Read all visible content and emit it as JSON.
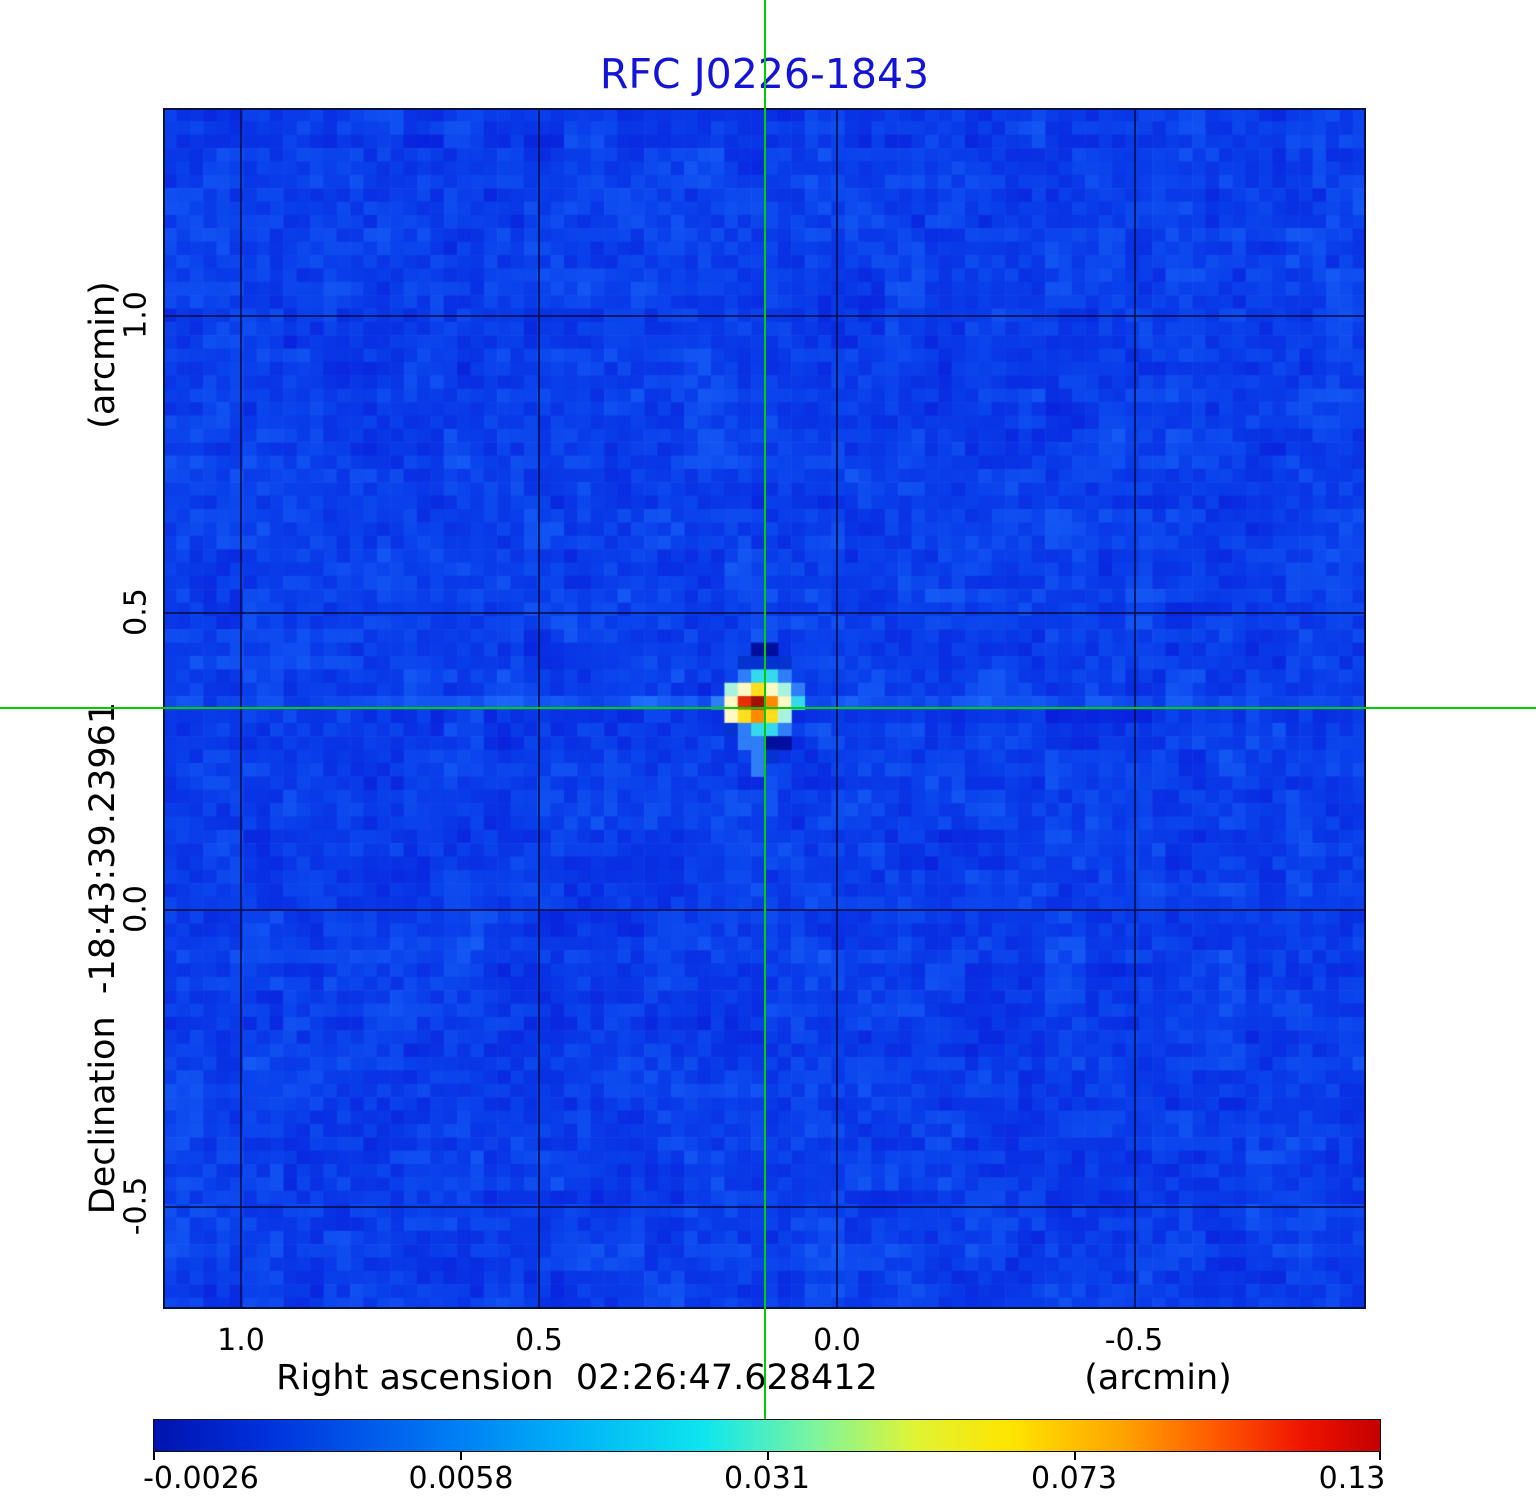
{
  "colors": {
    "title": "#1414d6",
    "crosshair": "#00cc00",
    "grid": "#081253",
    "map_base": "#093eea"
  },
  "text": {
    "title": "RFC J0226-1843",
    "y_unit": "(arcmin)",
    "y_label": "Declination  -18:43:39.23961",
    "x_label": "Right ascension  02:26:47.628412",
    "x_unit": "(arcmin)",
    "x_ticks": [
      "1.0",
      "0.5",
      "0.0",
      "-0.5"
    ],
    "y_ticks": [
      "1.0",
      "0.5",
      "0.0",
      "-0.5"
    ],
    "cbar_ticks": [
      "-0.0026",
      "0.0058",
      "0.031",
      "0.073",
      "0.13"
    ]
  },
  "chart_data": {
    "type": "heatmap",
    "title": "RFC J0226-1843",
    "x_axis": {
      "label": "Right ascension",
      "reference_value": "02:26:47.628412",
      "unit": "arcmin",
      "tick_values": [
        1.0,
        0.5,
        0.0,
        -0.5
      ],
      "range": [
        1.13,
        -0.9
      ]
    },
    "y_axis": {
      "label": "Declination",
      "reference_value": "-18:43:39.23961",
      "unit": "arcmin",
      "tick_values": [
        1.0,
        0.5,
        0.0,
        -0.5
      ],
      "range": [
        -0.67,
        1.36
      ]
    },
    "colorbar": {
      "tick_labels": [
        "-0.0026",
        "0.0058",
        "0.031",
        "0.073",
        "0.13"
      ],
      "min": -0.0026,
      "max": 0.13,
      "colormap": "jet-like",
      "gradient": [
        {
          "pos": 0.0,
          "color": "#0013ae"
        },
        {
          "pos": 0.09,
          "color": "#0030dc"
        },
        {
          "pos": 0.22,
          "color": "#0070f2"
        },
        {
          "pos": 0.34,
          "color": "#00b2f8"
        },
        {
          "pos": 0.45,
          "color": "#0fe6ee"
        },
        {
          "pos": 0.54,
          "color": "#7ef59d"
        },
        {
          "pos": 0.62,
          "color": "#dff434"
        },
        {
          "pos": 0.7,
          "color": "#ffe400"
        },
        {
          "pos": 0.79,
          "color": "#ffa300"
        },
        {
          "pos": 0.87,
          "color": "#ff5500"
        },
        {
          "pos": 0.94,
          "color": "#ee1200"
        },
        {
          "pos": 1.0,
          "color": "#c40000"
        }
      ]
    },
    "crosshair": {
      "x_arcmin": 0.12,
      "y_arcmin": 0.35
    },
    "source": {
      "peak_value": 0.13,
      "located_at_crosshair": true
    },
    "map": {
      "grid_cells": 90,
      "noise_seed": 20260226,
      "base_color": "#093eea",
      "palette": {
        "K": "#000f9e",
        "D": "#0433cf",
        "L": "#2f7ef8",
        "C": "#35d9ee",
        "P": "#a8f3df",
        "W": "#fcf9c4",
        "Y": "#ffdf1d",
        "O": "#ff8a00",
        "R": "#e62e00",
        "M": "#a31000"
      },
      "blob": {
        "anchor_col": 41,
        "anchor_row": 40,
        "rows": [
          "...KK..",
          "..DDDD.",
          "..LCCL.",
          ".PWYWPL",
          "LWRMOWC",
          ".WYOYP.",
          ".DLCCL.",
          "..LLKK.",
          "...LD..",
          "...L..."
        ]
      }
    }
  }
}
